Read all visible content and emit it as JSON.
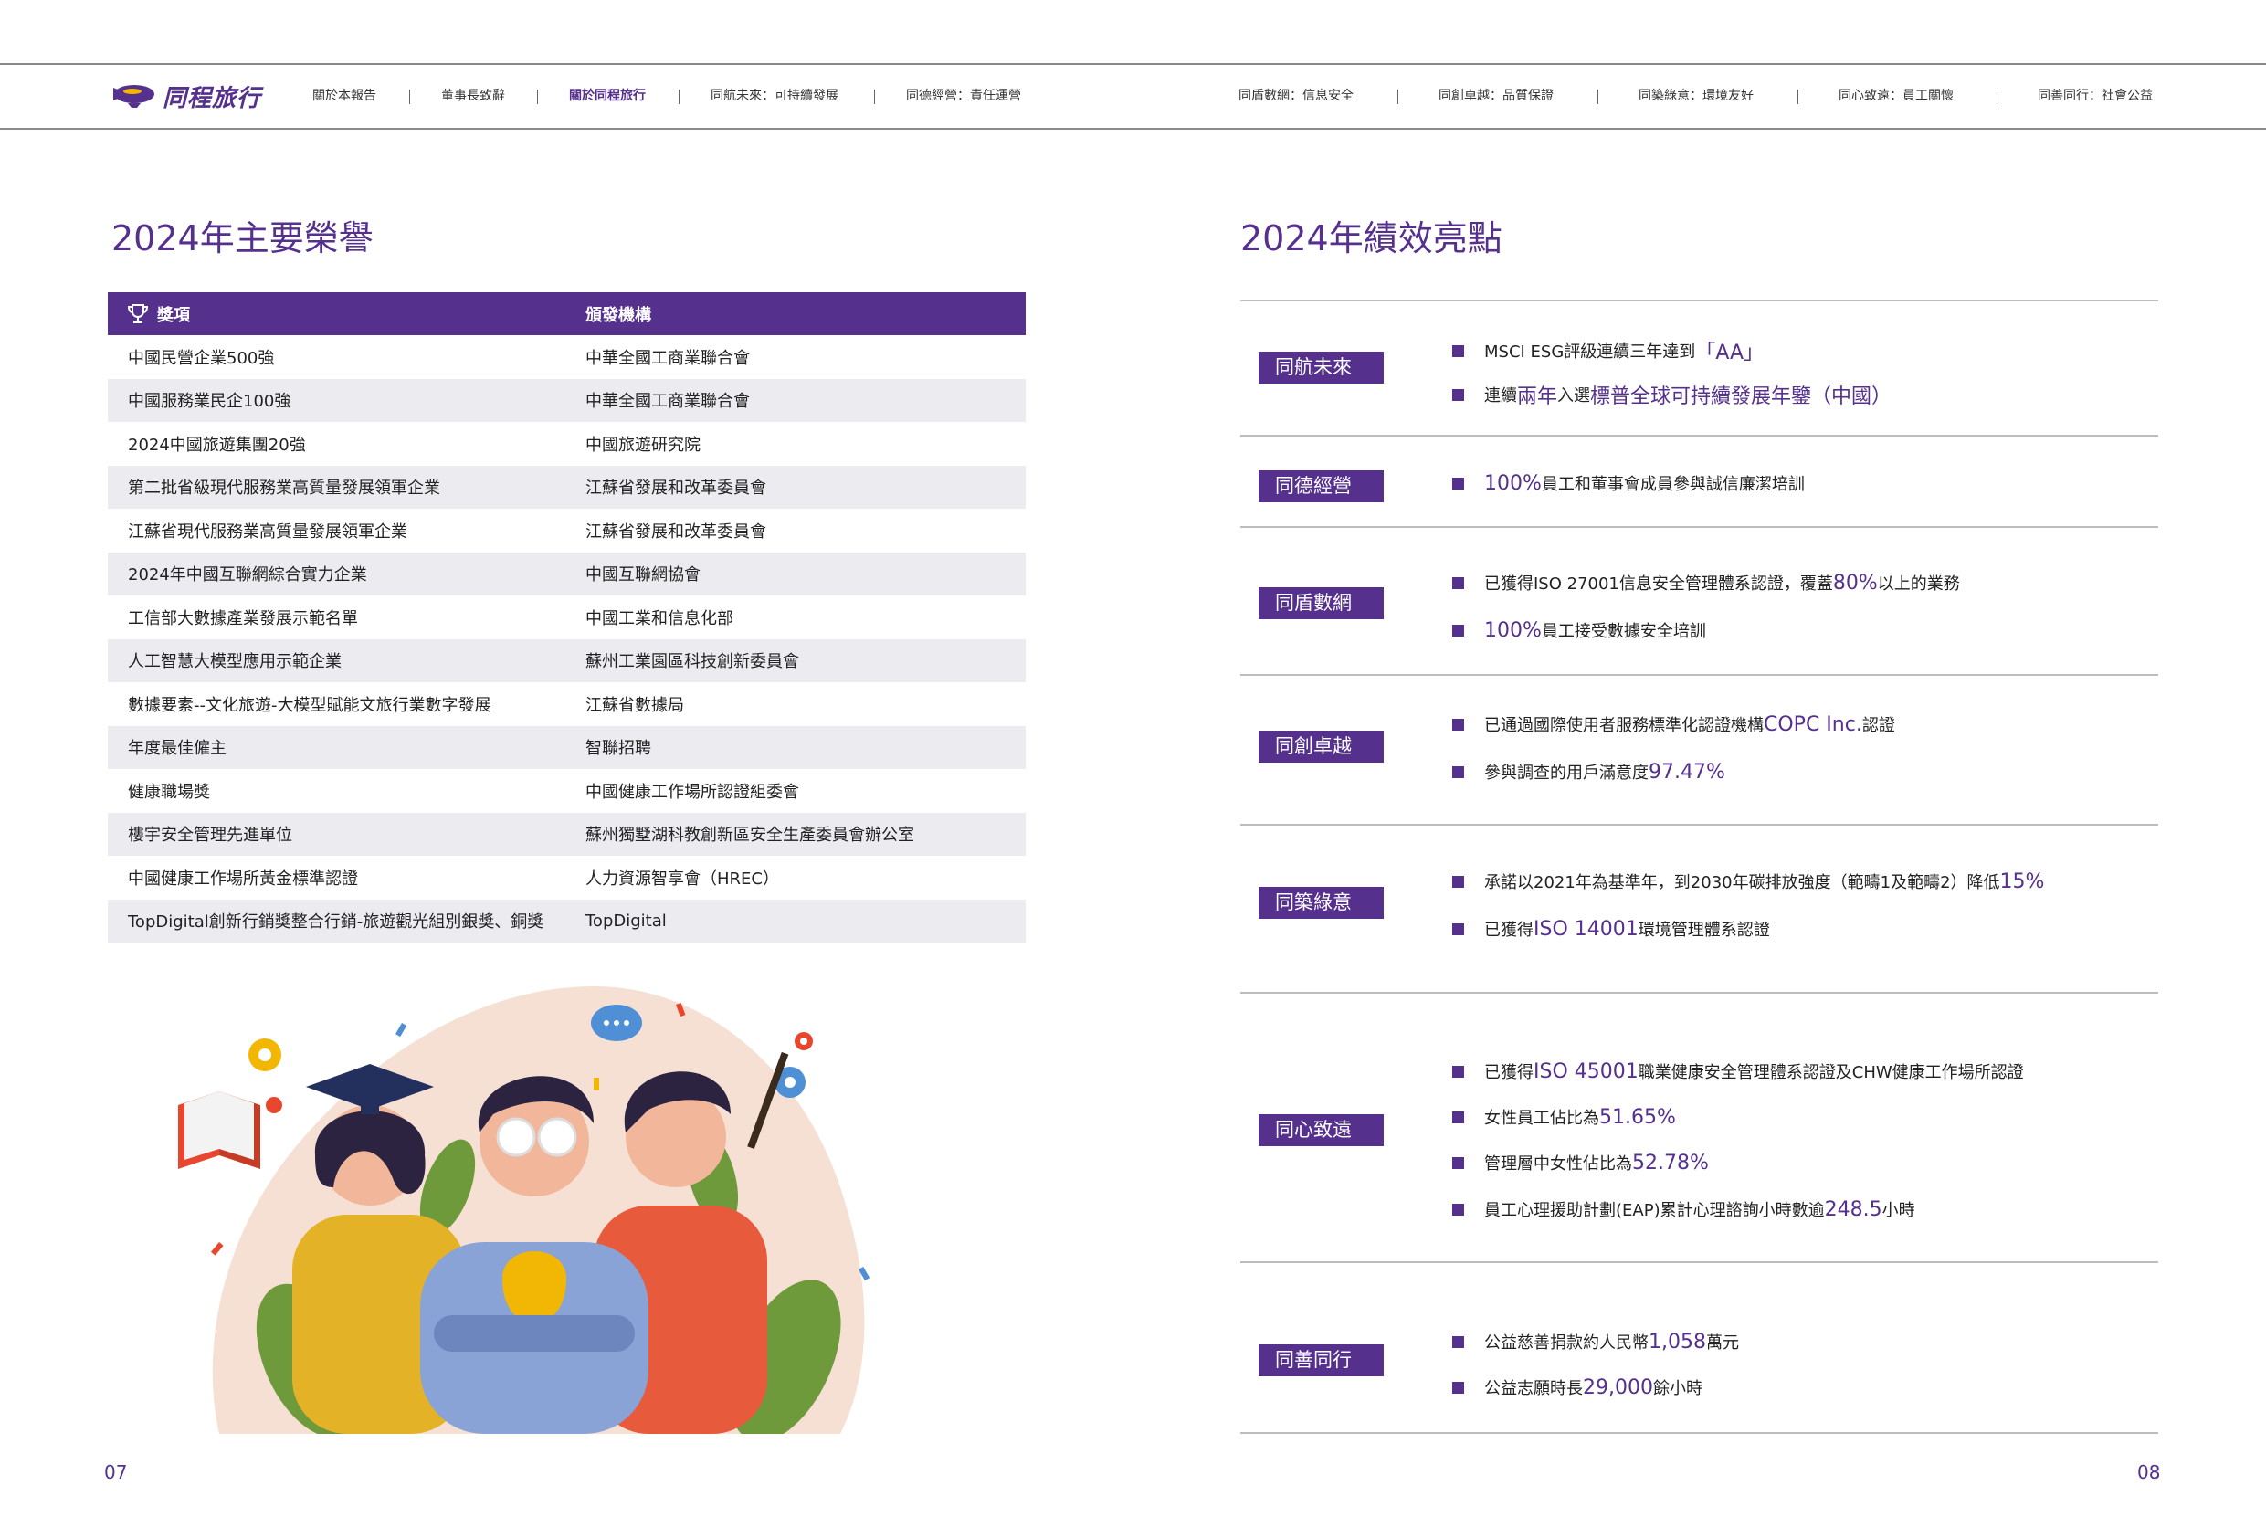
{
  "header": {
    "logo_text": "同程旅行",
    "nav_left": [
      "關於本報告",
      "董事長致辭",
      "關於同程旅行",
      "同航未來：可持續發展",
      "同德經營：責任運營"
    ],
    "nav_right": [
      "同盾數網：信息安全",
      "同創卓越：品質保證",
      "同築綠意：環境友好",
      "同心致遠：員工關懷",
      "同善同行：社會公益"
    ],
    "active_item": "關於同程旅行"
  },
  "left": {
    "title": "2024年主要榮譽",
    "table": {
      "headers": [
        "獎項",
        "頒發機構"
      ],
      "rows": [
        [
          "中國民營企業500強",
          "中華全國工商業聯合會"
        ],
        [
          "中國服務業民企100強",
          "中華全國工商業聯合會"
        ],
        [
          "2024中國旅遊集團20強",
          "中國旅遊研究院"
        ],
        [
          "第二批省級現代服務業高質量發展領軍企業",
          "江蘇省發展和改革委員會"
        ],
        [
          "江蘇省現代服務業高質量發展領軍企業",
          "江蘇省發展和改革委員會"
        ],
        [
          "2024年中國互聯網綜合實力企業",
          "中國互聯網協會"
        ],
        [
          "工信部大數據產業發展示範名單",
          "中國工業和信息化部"
        ],
        [
          "人工智慧大模型應用示範企業",
          "蘇州工業園區科技創新委員會"
        ],
        [
          "數據要素--文化旅遊-大模型賦能文旅行業數字發展",
          "江蘇省數據局"
        ],
        [
          "年度最佳僱主",
          "智聯招聘"
        ],
        [
          "健康職場獎",
          "中國健康工作場所認證組委會"
        ],
        [
          "樓宇安全管理先進單位",
          "蘇州獨墅湖科教創新區安全生產委員會辦公室"
        ],
        [
          "中國健康工作場所黃金標準認證",
          "人力資源智享會（HREC）"
        ],
        [
          "TopDigital創新行銷獎整合行銷-旅遊觀光組別銀獎、銅獎",
          "TopDigital"
        ]
      ]
    },
    "page_number": "07"
  },
  "right": {
    "title": "2024年績效亮點",
    "sections": [
      {
        "label": "同航未來",
        "items": [
          {
            "pre": "MSCI ESG評級連續三年達到",
            "hl": "「AA」",
            "post": ""
          },
          {
            "pre": "連續",
            "hl": "兩年",
            "post": "入選",
            "hl2": "標普全球可持續發展年鑒（中國）"
          }
        ]
      },
      {
        "label": "同德經營",
        "items": [
          {
            "pre": "",
            "hl": "100%",
            "post": "員工和董事會成員參與誠信廉潔培訓"
          }
        ]
      },
      {
        "label": "同盾數網",
        "items": [
          {
            "pre": "已獲得ISO 27001信息安全管理體系認證，覆蓋",
            "hl": "80%",
            "post": "以上的業務"
          },
          {
            "pre": "",
            "hl": "100%",
            "post": "員工接受數據安全培訓"
          }
        ]
      },
      {
        "label": "同創卓越",
        "items": [
          {
            "pre": "已通過國際使用者服務標準化認證機構",
            "hl": "COPC Inc.",
            "post": "認證"
          },
          {
            "pre": "參與調查的用戶滿意度",
            "hl": "97.47%",
            "post": ""
          }
        ]
      },
      {
        "label": "同築綠意",
        "items": [
          {
            "pre": "承諾以2021年為基準年，到2030年碳排放強度（範疇1及範疇2）降低",
            "hl": "15%",
            "post": ""
          },
          {
            "pre": "已獲得",
            "hl": "ISO 14001",
            "post": "環境管理體系認證"
          }
        ]
      },
      {
        "label": "同心致遠",
        "items": [
          {
            "pre": "已獲得",
            "hl": "ISO 45001",
            "post": "職業健康安全管理體系認證及CHW健康工作場所認證"
          },
          {
            "pre": "女性員工佔比為",
            "hl": "51.65%",
            "post": ""
          },
          {
            "pre": "管理層中女性佔比為",
            "hl": "52.78%",
            "post": ""
          },
          {
            "pre": "員工心理援助計劃(EAP)累計心理諮詢小時數逾",
            "hl": "248.5",
            "post": "小時"
          }
        ]
      },
      {
        "label": "同善同行",
        "items": [
          {
            "pre": "公益慈善捐款約人民幣",
            "hl": "1,058",
            "post": "萬元"
          },
          {
            "pre": "公益志願時長",
            "hl": "29,000",
            "post": "餘小時"
          }
        ]
      }
    ],
    "page_number": "08"
  },
  "colors": {
    "brand": "#55308d",
    "row_alt": "#ececf0"
  },
  "icons": [
    "trophy-icon",
    "logo-blimp-icon",
    "bullet-square-icon"
  ]
}
